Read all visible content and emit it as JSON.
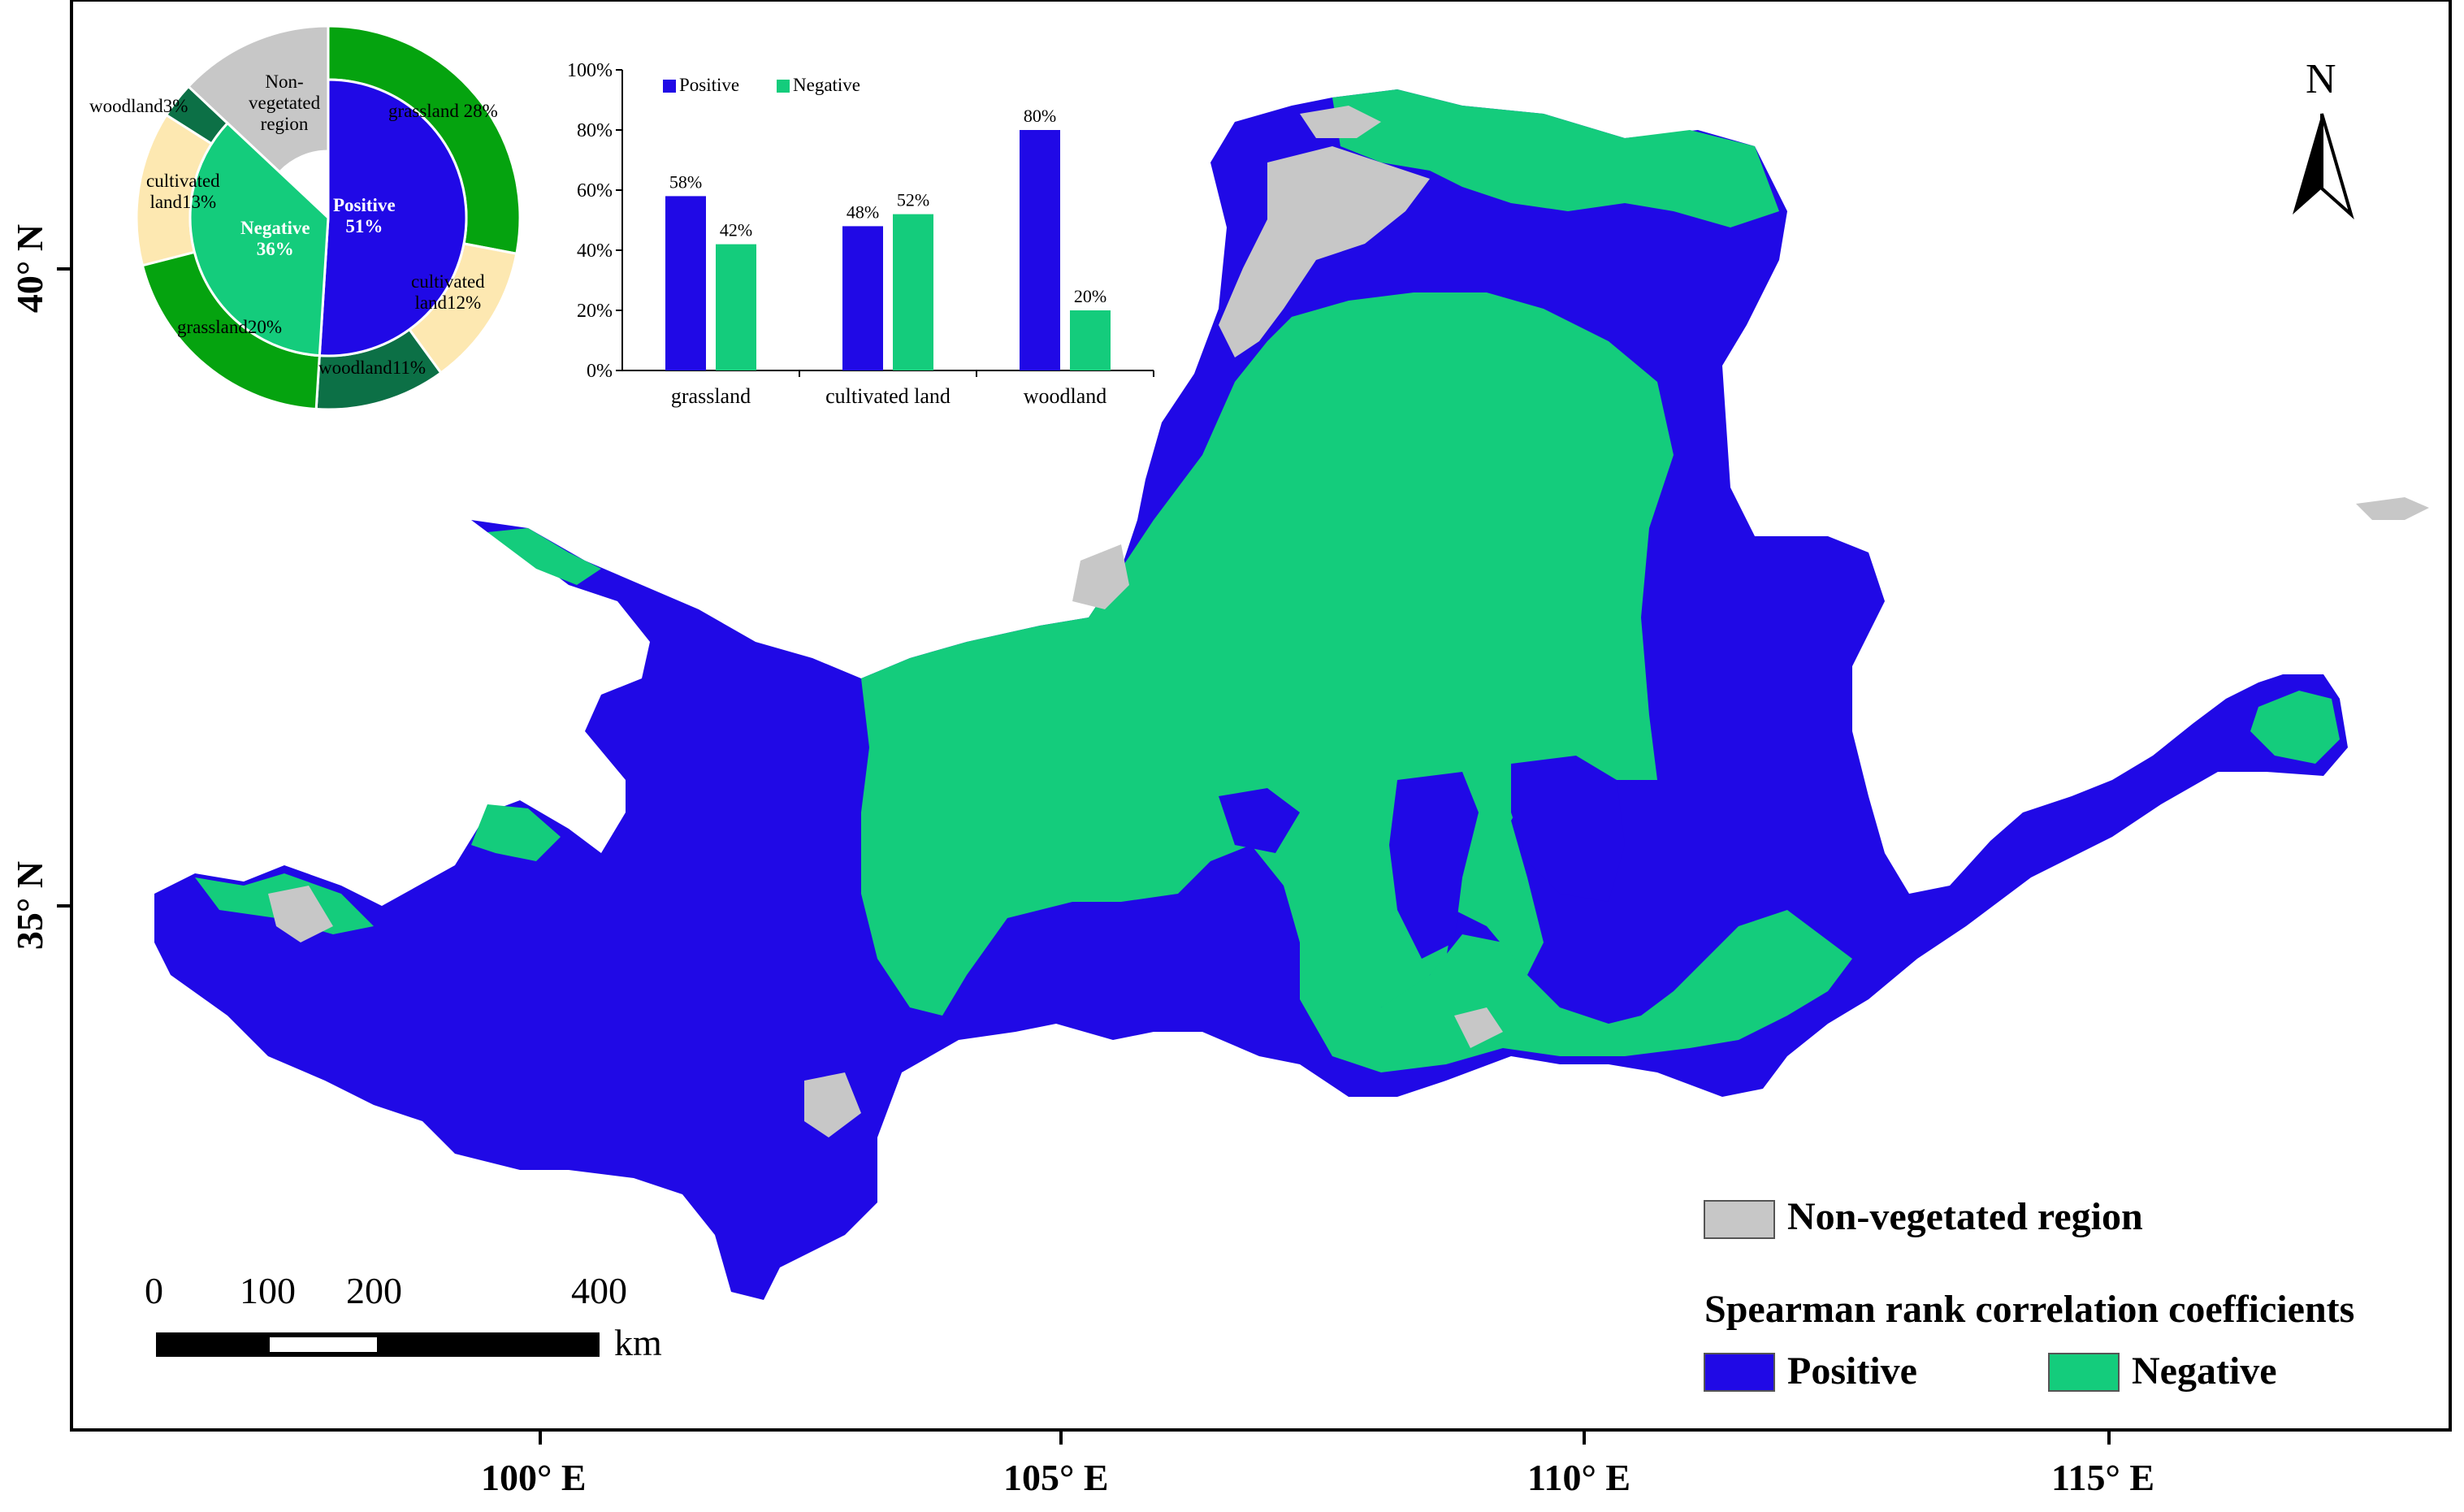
{
  "colors": {
    "positive": "#2009e6",
    "negative": "#14cc7c",
    "non_vegetated": "#c7c7c7",
    "grassland": "#05a30f",
    "cultivated": "#fde8b1",
    "woodland": "#0c7046"
  },
  "axes": {
    "x_ticks": [
      "100° E",
      "105° E",
      "110° E",
      "115° E"
    ],
    "y_ticks": [
      "40° N",
      "35° N"
    ]
  },
  "north_arrow": {
    "label": "N"
  },
  "scale_bar": {
    "ticks": [
      "0",
      "100",
      "200",
      "400"
    ],
    "unit": "km"
  },
  "legend": {
    "non_vegetated_label": "Non-vegetated region",
    "title": "Spearman rank correlation coefficients",
    "positive_label": "Positive",
    "negative_label": "Negative"
  },
  "pie": {
    "inner": {
      "positive_label": "Positive",
      "positive_value": "51%",
      "negative_label": "Negative",
      "negative_value": "36%",
      "non_veg_label": "Non-\nvegetated\nregion",
      "values": [
        51,
        36,
        13
      ]
    },
    "outer": [
      {
        "label": "grassland 28%",
        "value": 28,
        "class": "grassland"
      },
      {
        "label": "cultivated\nland12%",
        "value": 12,
        "class": "cultivated"
      },
      {
        "label": "woodland11%",
        "value": 11,
        "class": "woodland"
      },
      {
        "label": "grassland20%",
        "value": 20,
        "class": "grassland"
      },
      {
        "label": "cultivated\nland13%",
        "value": 13,
        "class": "cultivated"
      },
      {
        "label": "woodland3%",
        "value": 3,
        "class": "woodland"
      },
      {
        "label": "",
        "value": 13,
        "class": "non_vegetated"
      }
    ]
  },
  "chart_data": {
    "type": "bar",
    "categories": [
      "grassland",
      "cultivated land",
      "woodland"
    ],
    "series": [
      {
        "name": "Positive",
        "values": [
          58,
          48,
          80
        ]
      },
      {
        "name": "Negative",
        "values": [
          42,
          52,
          20
        ]
      }
    ],
    "data_labels": [
      [
        "58%",
        "48%",
        "80%"
      ],
      [
        "42%",
        "52%",
        "20%"
      ]
    ],
    "y_ticks": [
      "0%",
      "20%",
      "40%",
      "60%",
      "80%",
      "100%"
    ],
    "ylim": [
      0,
      100
    ],
    "legend_position": "top-left"
  }
}
